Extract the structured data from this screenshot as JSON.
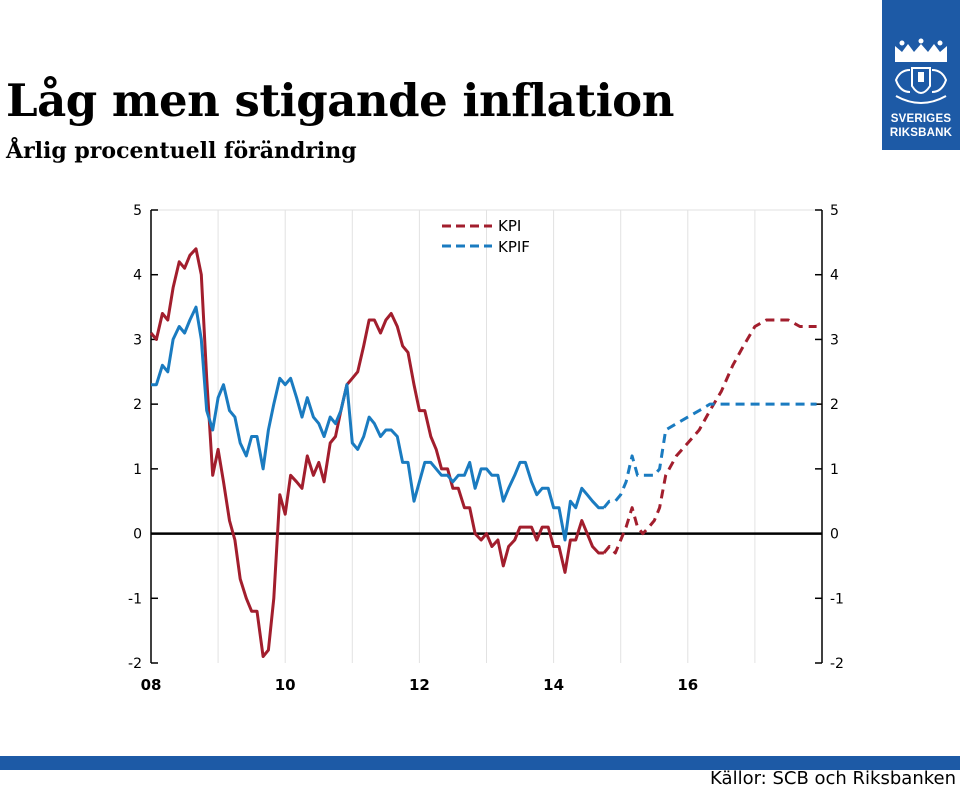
{
  "header": {
    "title": "Låg men stigande inflation",
    "subtitle": "Årlig procentuell förändring"
  },
  "logo": {
    "line1": "SVERIGES",
    "line2": "RIKSBANK",
    "color": "#1d5aa6",
    "icon": "crowned-shield-emblem"
  },
  "footer": {
    "source": "Källor: SCB och Riksbanken",
    "bar_color": "#1d5aa6"
  },
  "chart_data": {
    "type": "line",
    "xlim": [
      2008.0,
      2018.0
    ],
    "ylim": [
      -2,
      5
    ],
    "x_ticks": [
      {
        "value": 2008,
        "label": "08"
      },
      {
        "value": 2010,
        "label": "10"
      },
      {
        "value": 2012,
        "label": "12"
      },
      {
        "value": 2014,
        "label": "14"
      },
      {
        "value": 2016,
        "label": "16"
      }
    ],
    "y_ticks": [
      "-2",
      "-1",
      "0",
      "1",
      "2",
      "3",
      "4",
      "5"
    ],
    "grid": "vertical",
    "legend": {
      "placement": "top-center",
      "style": "dashed"
    },
    "forecast_start": 2014.75,
    "series": [
      {
        "name": "KPI",
        "color": "#a21e2d",
        "values": [
          [
            2008.0,
            3.1
          ],
          [
            2008.08,
            3.0
          ],
          [
            2008.17,
            3.4
          ],
          [
            2008.25,
            3.3
          ],
          [
            2008.33,
            3.8
          ],
          [
            2008.42,
            4.2
          ],
          [
            2008.5,
            4.1
          ],
          [
            2008.58,
            4.3
          ],
          [
            2008.67,
            4.4
          ],
          [
            2008.75,
            4.0
          ],
          [
            2008.83,
            2.4
          ],
          [
            2008.92,
            0.9
          ],
          [
            2009.0,
            1.3
          ],
          [
            2009.08,
            0.8
          ],
          [
            2009.17,
            0.2
          ],
          [
            2009.25,
            -0.1
          ],
          [
            2009.33,
            -0.7
          ],
          [
            2009.42,
            -1.0
          ],
          [
            2009.5,
            -1.2
          ],
          [
            2009.58,
            -1.2
          ],
          [
            2009.67,
            -1.9
          ],
          [
            2009.75,
            -1.8
          ],
          [
            2009.83,
            -1.0
          ],
          [
            2009.92,
            0.6
          ],
          [
            2010.0,
            0.3
          ],
          [
            2010.08,
            0.9
          ],
          [
            2010.17,
            0.8
          ],
          [
            2010.25,
            0.7
          ],
          [
            2010.33,
            1.2
          ],
          [
            2010.42,
            0.9
          ],
          [
            2010.5,
            1.1
          ],
          [
            2010.58,
            0.8
          ],
          [
            2010.67,
            1.4
          ],
          [
            2010.75,
            1.5
          ],
          [
            2010.83,
            1.9
          ],
          [
            2010.92,
            2.3
          ],
          [
            2011.0,
            2.4
          ],
          [
            2011.08,
            2.5
          ],
          [
            2011.17,
            2.9
          ],
          [
            2011.25,
            3.3
          ],
          [
            2011.33,
            3.3
          ],
          [
            2011.42,
            3.1
          ],
          [
            2011.5,
            3.3
          ],
          [
            2011.58,
            3.4
          ],
          [
            2011.67,
            3.2
          ],
          [
            2011.75,
            2.9
          ],
          [
            2011.83,
            2.8
          ],
          [
            2011.92,
            2.3
          ],
          [
            2012.0,
            1.9
          ],
          [
            2012.08,
            1.9
          ],
          [
            2012.17,
            1.5
          ],
          [
            2012.25,
            1.3
          ],
          [
            2012.33,
            1.0
          ],
          [
            2012.42,
            1.0
          ],
          [
            2012.5,
            0.7
          ],
          [
            2012.58,
            0.7
          ],
          [
            2012.67,
            0.4
          ],
          [
            2012.75,
            0.4
          ],
          [
            2012.83,
            0.0
          ],
          [
            2012.92,
            -0.1
          ],
          [
            2013.0,
            0.0
          ],
          [
            2013.08,
            -0.2
          ],
          [
            2013.17,
            -0.1
          ],
          [
            2013.25,
            -0.5
          ],
          [
            2013.33,
            -0.2
          ],
          [
            2013.42,
            -0.1
          ],
          [
            2013.5,
            0.1
          ],
          [
            2013.58,
            0.1
          ],
          [
            2013.67,
            0.1
          ],
          [
            2013.75,
            -0.1
          ],
          [
            2013.83,
            0.1
          ],
          [
            2013.92,
            0.1
          ],
          [
            2014.0,
            -0.2
          ],
          [
            2014.08,
            -0.2
          ],
          [
            2014.17,
            -0.6
          ],
          [
            2014.25,
            -0.1
          ],
          [
            2014.33,
            -0.1
          ],
          [
            2014.42,
            0.2
          ],
          [
            2014.5,
            0.0
          ],
          [
            2014.58,
            -0.2
          ],
          [
            2014.67,
            -0.3
          ],
          [
            2014.75,
            -0.3
          ],
          [
            2014.83,
            -0.2
          ],
          [
            2014.92,
            -0.3
          ],
          [
            2015.0,
            -0.1
          ],
          [
            2015.08,
            0.1
          ],
          [
            2015.17,
            0.4
          ],
          [
            2015.25,
            0.1
          ],
          [
            2015.33,
            0.0
          ],
          [
            2015.42,
            0.1
          ],
          [
            2015.5,
            0.2
          ],
          [
            2015.58,
            0.4
          ],
          [
            2015.67,
            0.9
          ],
          [
            2015.83,
            1.2
          ],
          [
            2016.0,
            1.4
          ],
          [
            2016.17,
            1.6
          ],
          [
            2016.33,
            1.9
          ],
          [
            2016.5,
            2.2
          ],
          [
            2016.67,
            2.6
          ],
          [
            2016.83,
            2.9
          ],
          [
            2017.0,
            3.2
          ],
          [
            2017.17,
            3.3
          ],
          [
            2017.33,
            3.3
          ],
          [
            2017.5,
            3.3
          ],
          [
            2017.67,
            3.2
          ],
          [
            2017.92,
            3.2
          ]
        ]
      },
      {
        "name": "KPIF",
        "color": "#1a7bc0",
        "values": [
          [
            2008.0,
            2.3
          ],
          [
            2008.08,
            2.3
          ],
          [
            2008.17,
            2.6
          ],
          [
            2008.25,
            2.5
          ],
          [
            2008.33,
            3.0
          ],
          [
            2008.42,
            3.2
          ],
          [
            2008.5,
            3.1
          ],
          [
            2008.58,
            3.3
          ],
          [
            2008.67,
            3.5
          ],
          [
            2008.75,
            3.0
          ],
          [
            2008.83,
            1.9
          ],
          [
            2008.92,
            1.6
          ],
          [
            2009.0,
            2.1
          ],
          [
            2009.08,
            2.3
          ],
          [
            2009.17,
            1.9
          ],
          [
            2009.25,
            1.8
          ],
          [
            2009.33,
            1.4
          ],
          [
            2009.42,
            1.2
          ],
          [
            2009.5,
            1.5
          ],
          [
            2009.58,
            1.5
          ],
          [
            2009.67,
            1.0
          ],
          [
            2009.75,
            1.6
          ],
          [
            2009.83,
            2.0
          ],
          [
            2009.92,
            2.4
          ],
          [
            2010.0,
            2.3
          ],
          [
            2010.08,
            2.4
          ],
          [
            2010.17,
            2.1
          ],
          [
            2010.25,
            1.8
          ],
          [
            2010.33,
            2.1
          ],
          [
            2010.42,
            1.8
          ],
          [
            2010.5,
            1.7
          ],
          [
            2010.58,
            1.5
          ],
          [
            2010.67,
            1.8
          ],
          [
            2010.75,
            1.7
          ],
          [
            2010.83,
            1.9
          ],
          [
            2010.92,
            2.3
          ],
          [
            2011.0,
            1.4
          ],
          [
            2011.08,
            1.3
          ],
          [
            2011.17,
            1.5
          ],
          [
            2011.25,
            1.8
          ],
          [
            2011.33,
            1.7
          ],
          [
            2011.42,
            1.5
          ],
          [
            2011.5,
            1.6
          ],
          [
            2011.58,
            1.6
          ],
          [
            2011.67,
            1.5
          ],
          [
            2011.75,
            1.1
          ],
          [
            2011.83,
            1.1
          ],
          [
            2011.92,
            0.5
          ],
          [
            2012.0,
            0.8
          ],
          [
            2012.08,
            1.1
          ],
          [
            2012.17,
            1.1
          ],
          [
            2012.25,
            1.0
          ],
          [
            2012.33,
            0.9
          ],
          [
            2012.42,
            0.9
          ],
          [
            2012.5,
            0.8
          ],
          [
            2012.58,
            0.9
          ],
          [
            2012.67,
            0.9
          ],
          [
            2012.75,
            1.1
          ],
          [
            2012.83,
            0.7
          ],
          [
            2012.92,
            1.0
          ],
          [
            2013.0,
            1.0
          ],
          [
            2013.08,
            0.9
          ],
          [
            2013.17,
            0.9
          ],
          [
            2013.25,
            0.5
          ],
          [
            2013.33,
            0.7
          ],
          [
            2013.42,
            0.9
          ],
          [
            2013.5,
            1.1
          ],
          [
            2013.58,
            1.1
          ],
          [
            2013.67,
            0.8
          ],
          [
            2013.75,
            0.6
          ],
          [
            2013.83,
            0.7
          ],
          [
            2013.92,
            0.7
          ],
          [
            2014.0,
            0.4
          ],
          [
            2014.08,
            0.4
          ],
          [
            2014.17,
            -0.1
          ],
          [
            2014.25,
            0.5
          ],
          [
            2014.33,
            0.4
          ],
          [
            2014.42,
            0.7
          ],
          [
            2014.5,
            0.6
          ],
          [
            2014.58,
            0.5
          ],
          [
            2014.67,
            0.4
          ],
          [
            2014.75,
            0.4
          ],
          [
            2014.83,
            0.5
          ],
          [
            2014.92,
            0.5
          ],
          [
            2015.0,
            0.6
          ],
          [
            2015.08,
            0.8
          ],
          [
            2015.17,
            1.2
          ],
          [
            2015.25,
            0.9
          ],
          [
            2015.33,
            0.9
          ],
          [
            2015.42,
            0.9
          ],
          [
            2015.5,
            0.9
          ],
          [
            2015.58,
            1.0
          ],
          [
            2015.67,
            1.6
          ],
          [
            2015.83,
            1.7
          ],
          [
            2016.0,
            1.8
          ],
          [
            2016.17,
            1.9
          ],
          [
            2016.33,
            2.0
          ],
          [
            2016.5,
            2.0
          ],
          [
            2016.67,
            2.0
          ],
          [
            2016.83,
            2.0
          ],
          [
            2017.0,
            2.0
          ],
          [
            2017.17,
            2.0
          ],
          [
            2017.33,
            2.0
          ],
          [
            2017.5,
            2.0
          ],
          [
            2017.67,
            2.0
          ],
          [
            2017.92,
            2.0
          ]
        ]
      }
    ]
  }
}
